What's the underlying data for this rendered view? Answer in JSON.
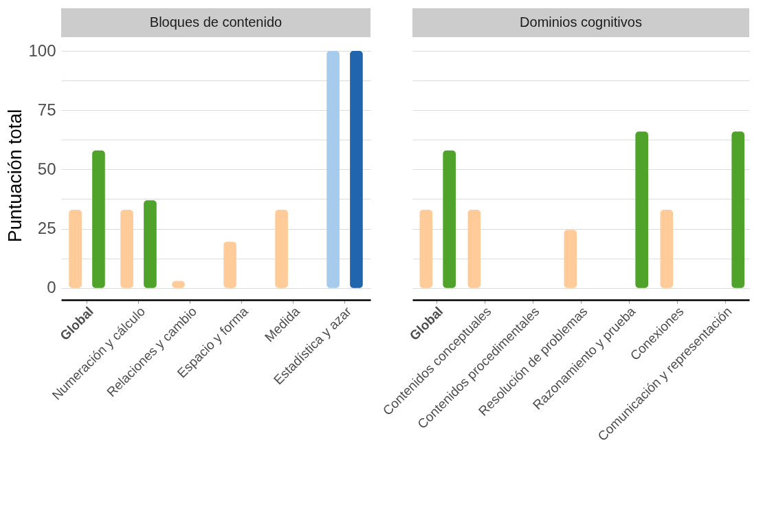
{
  "chart_data": [
    {
      "type": "bar",
      "title": "Bloques de contenido",
      "ylabel": "Puntuación total",
      "categories": [
        "Global",
        "Numeración y cálculo",
        "Relaciones y cambio",
        "Espacio y forma",
        "Medida",
        "Estadística y azar"
      ],
      "series": [
        {
          "values": [
            33,
            33,
            3,
            19.5,
            33,
            100
          ],
          "colors": [
            "#ffcc99",
            "#ffcc99",
            "#ffcc99",
            "#ffcc99",
            "#ffcc99",
            "#a6cbec"
          ]
        },
        {
          "values": [
            58,
            37,
            null,
            null,
            null,
            100
          ],
          "colors": [
            "#4fa32a",
            "#4fa32a",
            null,
            null,
            null,
            "#2166ac"
          ]
        }
      ],
      "ylim": [
        -5,
        100
      ],
      "yticks": [
        0,
        {
          "value": 12.5,
          "label": null
        },
        25,
        {
          "value": 37.5,
          "label": null
        },
        50,
        {
          "value": 62.5,
          "label": null
        },
        75,
        {
          "value": 87.5,
          "label": null
        },
        100
      ],
      "grid": "y"
    },
    {
      "type": "bar",
      "title": "Dominios cognitivos",
      "categories": [
        "Global",
        "Contenidos conceptuales",
        "Contenidos procedimentales",
        "Resolución de problemas",
        "Razonamiento y prueba",
        "Conexiones",
        "Comunicación y representación"
      ],
      "series": [
        {
          "values": [
            33,
            33,
            null,
            24.5,
            null,
            33,
            null
          ],
          "colors": [
            "#ffcc99",
            "#ffcc99",
            null,
            "#ffcc99",
            null,
            "#ffcc99",
            null
          ]
        },
        {
          "values": [
            58,
            null,
            null,
            null,
            66,
            null,
            66
          ],
          "colors": [
            "#4fa32a",
            null,
            null,
            null,
            "#4fa32a",
            null,
            "#4fa32a"
          ]
        }
      ],
      "ylim": [
        -5,
        100
      ],
      "yticks": [
        0,
        {
          "value": 12.5,
          "label": null
        },
        25,
        {
          "value": 37.5,
          "label": null
        },
        50,
        {
          "value": 62.5,
          "label": null
        },
        75,
        {
          "value": 87.5,
          "label": null
        },
        100
      ],
      "grid": "y",
      "tick_labels": "x"
    }
  ]
}
